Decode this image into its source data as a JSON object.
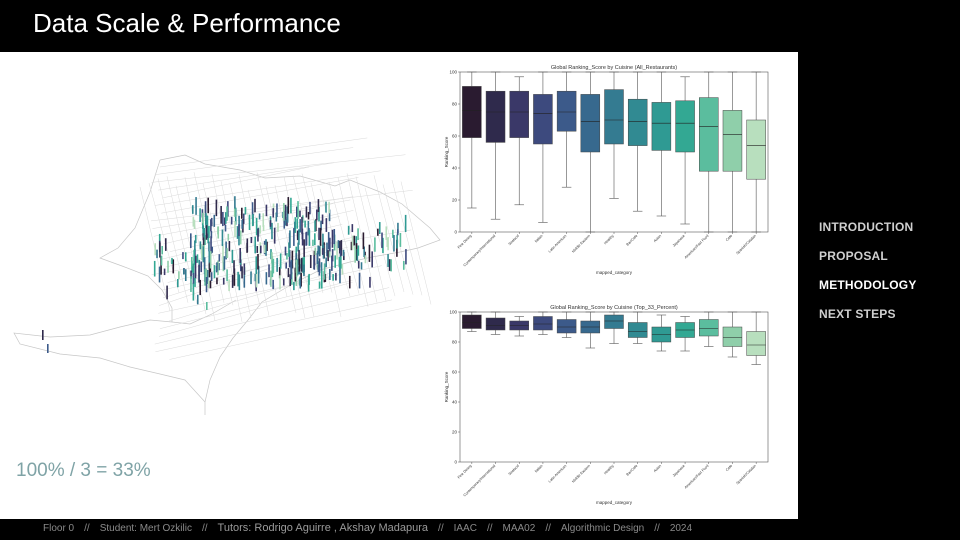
{
  "slide": {
    "title": "Data Scale & Performance",
    "formula": "100% / 3 = 33%"
  },
  "nav": {
    "items": [
      "INTRODUCTION",
      "PROPOSAL",
      "METHODOLOGY",
      "NEXT STEPS"
    ],
    "active_index": 2
  },
  "footer": {
    "parts": [
      "Floor 0",
      "Student: Mert Ozkilic",
      "Tutors: Rodrigo Aguirre , Akshay Madapura",
      "IAAC",
      "MAA02",
      "Algorithmic Design",
      "2024"
    ],
    "separator": "//"
  },
  "colors": {
    "background": "#000000",
    "formula": "#7fa3a6",
    "palette": [
      "#2a1b30",
      "#2f2a4c",
      "#3a3868",
      "#3d4a7e",
      "#3c5a8a",
      "#37698e",
      "#347b91",
      "#318a92",
      "#2f9a93",
      "#33a893",
      "#5bbd9e",
      "#8fcfaa",
      "#b8dfbe"
    ]
  },
  "chart_data": [
    {
      "type": "box",
      "title": "Global Ranking_Score by Cuisine (All_Restaurants)",
      "xlabel": "mapped_category",
      "ylabel": "Ranking_Score",
      "ylim": [
        0,
        100
      ],
      "yticks": [
        0,
        20,
        40,
        60,
        80,
        100
      ],
      "categories": [
        "Fine Dining",
        "Contemporary/International",
        "Seafood",
        "Italian",
        "Latin American",
        "Middle Eastern",
        "Healthy",
        "Bar/Cafe",
        "Asian",
        "Japanese",
        "American/Fast Food",
        "Cafe",
        "Spanish/Catalan"
      ],
      "boxes": [
        {
          "q1": 59,
          "median": 76,
          "q3": 91,
          "low": 15,
          "high": 100
        },
        {
          "q1": 56,
          "median": 75,
          "q3": 88,
          "low": 8,
          "high": 100
        },
        {
          "q1": 59,
          "median": 75,
          "q3": 88,
          "low": 17,
          "high": 97
        },
        {
          "q1": 55,
          "median": 74,
          "q3": 86,
          "low": 6,
          "high": 100
        },
        {
          "q1": 63,
          "median": 75,
          "q3": 88,
          "low": 28,
          "high": 100
        },
        {
          "q1": 50,
          "median": 69,
          "q3": 86,
          "low": 0,
          "high": 100
        },
        {
          "q1": 55,
          "median": 70,
          "q3": 89,
          "low": 21,
          "high": 100
        },
        {
          "q1": 54,
          "median": 69,
          "q3": 83,
          "low": 13,
          "high": 100
        },
        {
          "q1": 51,
          "median": 68,
          "q3": 81,
          "low": 10,
          "high": 100
        },
        {
          "q1": 50,
          "median": 68,
          "q3": 82,
          "low": 5,
          "high": 97
        },
        {
          "q1": 38,
          "median": 66,
          "q3": 84,
          "low": 0,
          "high": 100
        },
        {
          "q1": 38,
          "median": 61,
          "q3": 76,
          "low": 0,
          "high": 100
        },
        {
          "q1": 33,
          "median": 54,
          "q3": 70,
          "low": 0,
          "high": 100
        }
      ]
    },
    {
      "type": "box",
      "title": "Global Ranking_Score by Cuisine (Top_33_Percent)",
      "xlabel": "mapped_category",
      "ylabel": "Ranking_Score",
      "ylim": [
        0,
        100
      ],
      "yticks": [
        0,
        20,
        40,
        60,
        80,
        100
      ],
      "categories": [
        "Fine Dining",
        "Contemporary/International",
        "Seafood",
        "Italian",
        "Latin American",
        "Middle Eastern",
        "Healthy",
        "Bar/Cafe",
        "Asian",
        "Japanese",
        "American/Fast Food",
        "Cafe",
        "Spanish/Catalan"
      ],
      "boxes": [
        {
          "q1": 89,
          "median": 93,
          "q3": 98,
          "low": 87,
          "high": 100
        },
        {
          "q1": 88,
          "median": 91,
          "q3": 96,
          "low": 85,
          "high": 100
        },
        {
          "q1": 88,
          "median": 91,
          "q3": 94,
          "low": 84,
          "high": 97
        },
        {
          "q1": 88,
          "median": 92,
          "q3": 97,
          "low": 85,
          "high": 100
        },
        {
          "q1": 86,
          "median": 90,
          "q3": 95,
          "low": 83,
          "high": 100
        },
        {
          "q1": 86,
          "median": 90,
          "q3": 94,
          "low": 76,
          "high": 100
        },
        {
          "q1": 89,
          "median": 94,
          "q3": 98,
          "low": 79,
          "high": 100
        },
        {
          "q1": 83,
          "median": 87,
          "q3": 93,
          "low": 79,
          "high": 100
        },
        {
          "q1": 80,
          "median": 85,
          "q3": 90,
          "low": 74,
          "high": 98
        },
        {
          "q1": 83,
          "median": 88,
          "q3": 93,
          "low": 74,
          "high": 97
        },
        {
          "q1": 84,
          "median": 89,
          "q3": 95,
          "low": 77,
          "high": 100
        },
        {
          "q1": 77,
          "median": 83,
          "q3": 90,
          "low": 70,
          "high": 100
        },
        {
          "q1": 71,
          "median": 78,
          "q3": 87,
          "low": 65,
          "high": 100
        }
      ]
    }
  ]
}
